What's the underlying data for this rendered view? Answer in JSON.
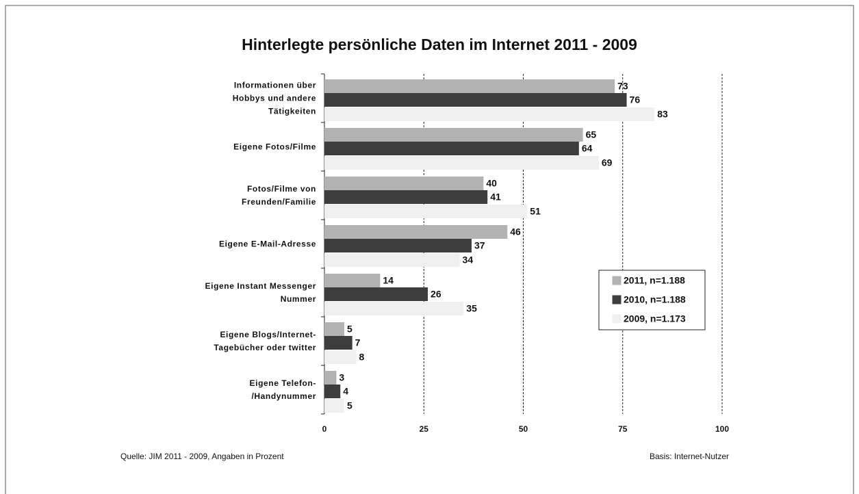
{
  "chart_data": {
    "type": "barh",
    "title": "Hinterlegte persönliche Daten im Internet 2011 - 2009",
    "categories": [
      "Informationen über\nHobbys und andere\nTätigkeiten",
      "Eigene Fotos/Filme",
      "Fotos/Filme von\nFreunden/Familie",
      "Eigene E-Mail-Adresse",
      "Eigene Instant Messenger\nNummer",
      "Eigene Blogs/Internet-\nTagebücher oder twitter",
      "Eigene Telefon-\n/Handynummer"
    ],
    "series": [
      {
        "name": "2011, n=1.188",
        "color": "#b2b2b2",
        "values": [
          73,
          65,
          40,
          46,
          14,
          5,
          3
        ]
      },
      {
        "name": "2010, n=1.188",
        "color": "#3d3d3d",
        "values": [
          76,
          64,
          41,
          37,
          26,
          7,
          4
        ]
      },
      {
        "name": "2009, n=1.173",
        "color": "#efefef",
        "values": [
          83,
          69,
          51,
          34,
          35,
          8,
          5
        ]
      }
    ],
    "xlim": [
      0,
      100
    ],
    "xticks": [
      0,
      25,
      50,
      75,
      100
    ],
    "grid": true,
    "legend": "right",
    "source": "Quelle: JIM 2011 - 2009, Angaben in Prozent",
    "note": "Basis: Internet-Nutzer"
  }
}
